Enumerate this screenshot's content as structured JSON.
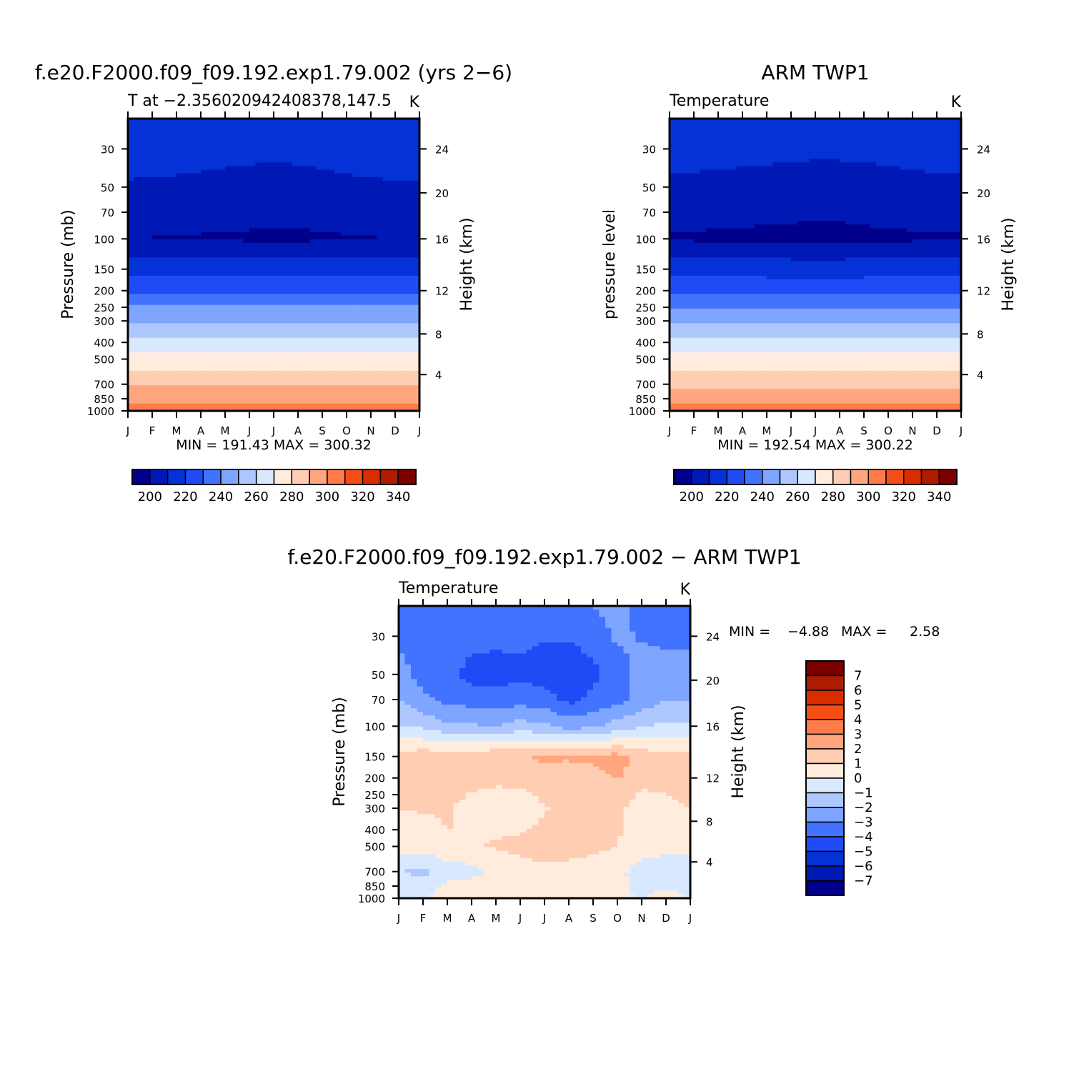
{
  "colors": {
    "abs_palette": [
      "#00008c",
      "#0019b4",
      "#0532d7",
      "#1e4bf5",
      "#4173ff",
      "#7ea5ff",
      "#aec7ff",
      "#d8e9ff",
      "#ffecdc",
      "#ffcdb2",
      "#ffa67e",
      "#ff7c4a",
      "#f24e16",
      "#d92d00",
      "#ad1c00",
      "#7b0000"
    ],
    "diff_palette": [
      "#00008c",
      "#0019b4",
      "#0532d7",
      "#1e4bf5",
      "#4173ff",
      "#7ea5ff",
      "#aec7ff",
      "#d8e9ff",
      "#ffecdc",
      "#ffcdb2",
      "#ffa67e",
      "#ff7c4a",
      "#f24e16",
      "#d92d00",
      "#ad1c00",
      "#7b0000"
    ]
  },
  "chart_data": [
    {
      "type": "heatmap",
      "title": "f.e20.F2000.f09_f09.192.exp1.79.002 (yrs 2−6)",
      "subtitle": "T at −2.356020942408378,147.5",
      "units": "K",
      "ylabel": "Pressure (mb)",
      "y2label": "Height (km)",
      "stats": "MIN = 191.43 MAX = 300.32",
      "x_ticks": [
        "J",
        "F",
        "M",
        "A",
        "M",
        "J",
        "J",
        "A",
        "S",
        "O",
        "N",
        "D",
        "J"
      ],
      "y_ticks": [
        30,
        50,
        70,
        100,
        150,
        200,
        250,
        300,
        400,
        500,
        700,
        850,
        1000
      ],
      "y2_ticks": [
        24,
        20,
        16,
        12,
        8,
        4
      ],
      "ylim": [
        1000,
        20
      ],
      "y_scale": "log",
      "colorbar_labels": [
        "200",
        "220",
        "240",
        "260",
        "280",
        "300",
        "320",
        "340"
      ],
      "colorbar_levels": [
        195,
        200,
        205,
        210,
        215,
        220,
        225,
        230,
        235,
        240,
        245,
        250,
        255,
        260,
        265,
        270,
        275,
        280,
        285,
        290,
        295,
        300,
        305,
        310,
        315,
        320,
        325,
        330,
        335,
        340
      ],
      "z_range": [
        191.43,
        300.32
      ],
      "months": [
        "J",
        "F",
        "M",
        "A",
        "M",
        "J",
        "J",
        "A",
        "S",
        "O",
        "N",
        "D",
        "J"
      ],
      "pressure_levels": [
        20,
        30,
        50,
        70,
        100,
        150,
        200,
        250,
        300,
        400,
        500,
        700,
        850,
        1000
      ],
      "z": [
        [
          214,
          214,
          214,
          213.5,
          213,
          212.6,
          212.5,
          212.6,
          213,
          213.5,
          214,
          214,
          214
        ],
        [
          209,
          208.8,
          208.5,
          208,
          207.5,
          207.2,
          207,
          207.3,
          207.8,
          208.4,
          208.9,
          209.1,
          209
        ],
        [
          204,
          203.8,
          203.5,
          203,
          202.5,
          202,
          201.5,
          201.8,
          202.5,
          203.2,
          203.8,
          204.1,
          204
        ],
        [
          199,
          198.8,
          198.5,
          198.2,
          198,
          197.5,
          197,
          197.2,
          197.8,
          198.3,
          198.8,
          199.1,
          199
        ],
        [
          195,
          194.8,
          194.5,
          194.2,
          194,
          193.7,
          193.5,
          193.6,
          194,
          194.3,
          194.7,
          195,
          195
        ],
        [
          211,
          211,
          211,
          211,
          211,
          210.8,
          210.6,
          210.8,
          211,
          211,
          211,
          211,
          211
        ],
        [
          222,
          222,
          222,
          222,
          222,
          222,
          222,
          222,
          222,
          222,
          222,
          222,
          222
        ],
        [
          236,
          236,
          236,
          236,
          236,
          236,
          235.8,
          236,
          236,
          236,
          236,
          236,
          236
        ],
        [
          244,
          244,
          244,
          244,
          244,
          244,
          243.8,
          244,
          244,
          244,
          244,
          244,
          244
        ],
        [
          259,
          259,
          259,
          259,
          259,
          259,
          259,
          259,
          259,
          259,
          259,
          259,
          259
        ],
        [
          268.5,
          268.5,
          268.5,
          268.5,
          268.5,
          268.5,
          268.3,
          268.5,
          268.5,
          268.5,
          268.5,
          268.5,
          268.5
        ],
        [
          283.5,
          283.5,
          283.5,
          283.5,
          283.5,
          283.5,
          283.3,
          283.5,
          283.5,
          283.5,
          283.5,
          283.5,
          283.5
        ],
        [
          292,
          292,
          292,
          292,
          292,
          292,
          292,
          292,
          292,
          292,
          292,
          292,
          292
        ],
        [
          299,
          299,
          299,
          299,
          299,
          299,
          299,
          299,
          299,
          299,
          299,
          299,
          299
        ]
      ]
    },
    {
      "type": "heatmap",
      "title": "ARM TWP1",
      "subtitle": "Temperature",
      "units": "K",
      "ylabel": "pressure level",
      "y2label": "Height (km)",
      "stats": "MIN = 192.54 MAX = 300.22",
      "x_ticks": [
        "J",
        "F",
        "M",
        "A",
        "M",
        "J",
        "J",
        "A",
        "S",
        "O",
        "N",
        "D",
        "J"
      ],
      "y_ticks": [
        30,
        50,
        70,
        100,
        150,
        200,
        250,
        300,
        400,
        500,
        700,
        850,
        1000
      ],
      "y2_ticks": [
        24,
        20,
        16,
        12,
        8,
        4
      ],
      "ylim": [
        1000,
        20
      ],
      "y_scale": "log",
      "colorbar_labels": [
        "200",
        "220",
        "240",
        "260",
        "280",
        "300",
        "320",
        "340"
      ],
      "colorbar_levels": [
        195,
        200,
        205,
        210,
        215,
        220,
        225,
        230,
        235,
        240,
        245,
        250,
        255,
        260,
        265,
        270,
        275,
        280,
        285,
        290,
        295,
        300,
        305,
        310,
        315,
        320,
        325,
        330,
        335,
        340
      ],
      "z_range": [
        192.54,
        300.22
      ],
      "months": [
        "J",
        "F",
        "M",
        "A",
        "M",
        "J",
        "J",
        "A",
        "S",
        "O",
        "N",
        "D",
        "J"
      ],
      "pressure_levels": [
        20,
        30,
        50,
        70,
        100,
        150,
        200,
        250,
        300,
        400,
        500,
        700,
        850,
        1000
      ],
      "z": [
        [
          213,
          213,
          213,
          213,
          212.8,
          212.5,
          212.2,
          212.2,
          212.5,
          212.8,
          213,
          213,
          213
        ],
        [
          207.8,
          207.6,
          207.4,
          207.2,
          207,
          206.8,
          206.6,
          206.8,
          207,
          207.2,
          207.5,
          207.8,
          207.8
        ],
        [
          203.5,
          203.3,
          203,
          202.6,
          202.2,
          201.8,
          201.2,
          200.8,
          201.5,
          202.2,
          203,
          203.5,
          203.5
        ],
        [
          198,
          197.8,
          197.5,
          197.2,
          196.8,
          196.4,
          196,
          196.2,
          196.8,
          197.4,
          197.8,
          198.1,
          198
        ],
        [
          194,
          193.8,
          193.6,
          193.4,
          193.2,
          193,
          192.8,
          192.9,
          193.2,
          193.5,
          193.8,
          194,
          194
        ],
        [
          211,
          211,
          211,
          211,
          211,
          210.8,
          210.6,
          210.8,
          211,
          211,
          211,
          211,
          211
        ],
        [
          221.5,
          221.5,
          221.5,
          221.5,
          221.3,
          221,
          220.8,
          221,
          221.3,
          221.5,
          221.5,
          221.5,
          221.5
        ],
        [
          235,
          235,
          235,
          235,
          235,
          235,
          234.8,
          235,
          235,
          235,
          235,
          235,
          235
        ],
        [
          244,
          244,
          244,
          244,
          244,
          244,
          243.6,
          244,
          244,
          244,
          244,
          244,
          244
        ],
        [
          258.5,
          258.5,
          258.5,
          258.5,
          258.5,
          258.5,
          258.2,
          258.5,
          258.5,
          258.5,
          258.5,
          258.5,
          258.5
        ],
        [
          268,
          268,
          268,
          268,
          268,
          268,
          267.8,
          268,
          268,
          268,
          268,
          268,
          268
        ],
        [
          282.8,
          282.8,
          282.8,
          282.8,
          282.8,
          282.6,
          282.4,
          282.6,
          282.8,
          282.8,
          282.8,
          282.8,
          282.8
        ],
        [
          291.5,
          291.5,
          291.5,
          291.5,
          291.5,
          291.5,
          291.5,
          291.5,
          291.5,
          291.5,
          291.5,
          291.5,
          291.5
        ],
        [
          298.5,
          298.5,
          298.5,
          298.5,
          298.5,
          298.5,
          298.5,
          298.5,
          298.5,
          298.5,
          298.5,
          298.5,
          298.5
        ]
      ]
    },
    {
      "type": "heatmap",
      "title": "f.e20.F2000.f09_f09.192.exp1.79.002 − ARM TWP1",
      "subtitle": "Temperature",
      "units": "K",
      "ylabel": "Pressure (mb)",
      "y2label": "Height (km)",
      "stats_min_label": "MIN =",
      "stats_min": "−4.88",
      "stats_max_label": "MAX =",
      "stats_max": "2.58",
      "x_ticks": [
        "J",
        "F",
        "M",
        "A",
        "M",
        "J",
        "J",
        "A",
        "S",
        "O",
        "N",
        "D",
        "J"
      ],
      "y_ticks": [
        30,
        50,
        70,
        100,
        150,
        200,
        250,
        300,
        400,
        500,
        700,
        850,
        1000
      ],
      "y2_ticks": [
        24,
        20,
        16,
        12,
        8,
        4
      ],
      "ylim": [
        1000,
        20
      ],
      "y_scale": "log",
      "colorbar_labels": [
        "7",
        "6",
        "5",
        "4",
        "3",
        "2",
        "1",
        "0",
        "−1",
        "−2",
        "−3",
        "−4",
        "−5",
        "−6",
        "−7"
      ],
      "colorbar_levels": [
        -7,
        -6,
        -5,
        -4,
        -3,
        -2,
        -1,
        0,
        1,
        2,
        3,
        4,
        5,
        6,
        7
      ],
      "z_range": [
        -4.88,
        2.58
      ],
      "months": [
        "J",
        "F",
        "M",
        "A",
        "M",
        "J",
        "J",
        "A",
        "S",
        "O",
        "N",
        "D",
        "J"
      ],
      "pressure_levels": [
        20,
        30,
        50,
        70,
        100,
        150,
        200,
        250,
        300,
        400,
        500,
        700,
        850,
        1000
      ],
      "z": [
        [
          -3.5,
          -3.8,
          -3.5,
          -3.3,
          -3.2,
          -3.3,
          -3.5,
          -3.3,
          -3.0,
          -2.6,
          -3.4,
          -3.5,
          -3.5
        ],
        [
          -3.3,
          -3.6,
          -3.5,
          -3.6,
          -3.7,
          -3.8,
          -3.9,
          -3.9,
          -3.6,
          -2.8,
          -3.1,
          -3.3,
          -3.3
        ],
        [
          -2.5,
          -3.4,
          -3.6,
          -4.4,
          -4.5,
          -4.2,
          -4.5,
          -4.6,
          -4.3,
          -3.5,
          -2.5,
          -2.4,
          -2.5
        ],
        [
          -2.0,
          -2.8,
          -3.3,
          -3.4,
          -3.5,
          -3.4,
          -3.6,
          -4.3,
          -3.7,
          -3.3,
          -2.7,
          -2.0,
          -2.0
        ],
        [
          -0.9,
          -1.2,
          -1.8,
          -1.9,
          -2.0,
          -1.6,
          -1.8,
          -2.4,
          -2.2,
          -1.6,
          -1.0,
          -0.8,
          -0.9
        ],
        [
          1.4,
          1.6,
          1.6,
          1.7,
          1.8,
          1.8,
          2.2,
          2.1,
          2.2,
          2.4,
          1.6,
          1.2,
          1.4
        ],
        [
          1.3,
          1.4,
          1.5,
          1.5,
          1.2,
          1.3,
          1.6,
          1.6,
          1.7,
          2.1,
          1.5,
          1.2,
          1.3
        ],
        [
          1.2,
          1.3,
          1.3,
          0.9,
          0.8,
          0.8,
          1.2,
          1.4,
          1.4,
          1.5,
          0.8,
          1.0,
          1.2
        ],
        [
          1.0,
          1.1,
          1.1,
          0.7,
          0.6,
          0.6,
          0.9,
          1.3,
          1.3,
          1.2,
          0.6,
          0.7,
          1.0
        ],
        [
          0.6,
          0.7,
          1.0,
          1.0,
          0.8,
          0.9,
          1.2,
          1.3,
          1.3,
          1.1,
          0.5,
          0.5,
          0.6
        ],
        [
          0.4,
          0.5,
          0.8,
          0.9,
          1.1,
          1.3,
          2.1,
          1.5,
          1.3,
          1.0,
          0.5,
          0.4,
          0.4
        ],
        [
          -0.9,
          -1.3,
          -0.5,
          -0.4,
          0.3,
          0.4,
          0.5,
          0.5,
          0.4,
          0.2,
          -0.4,
          -0.8,
          -0.9
        ],
        [
          -0.4,
          -0.5,
          0.2,
          0.4,
          0.5,
          0.4,
          0.4,
          0.5,
          0.3,
          0.2,
          -0.2,
          -0.3,
          -0.4
        ],
        [
          -0.2,
          -0.1,
          0.4,
          0.4,
          0.5,
          0.4,
          0.4,
          0.5,
          0.3,
          0.2,
          -0.1,
          0.6,
          -0.2
        ]
      ]
    }
  ]
}
